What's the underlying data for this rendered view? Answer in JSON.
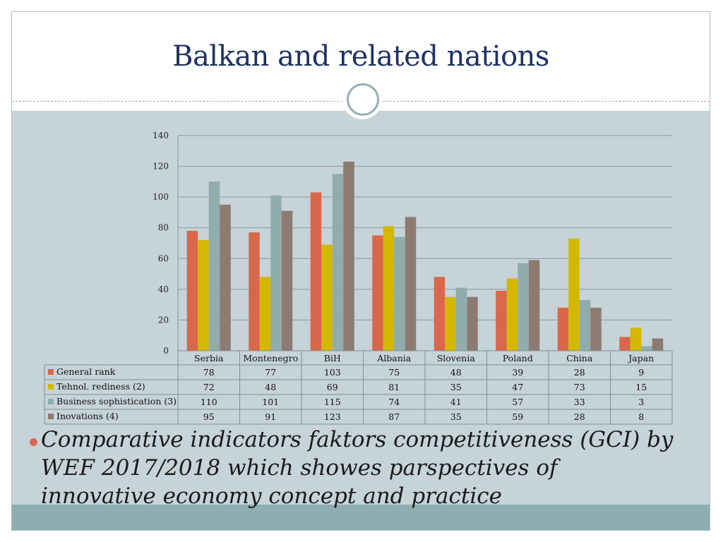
{
  "slide": {
    "title": "Balkan and related nations",
    "bullet": "Comparative indicators faktors competitiveness (GCI) by WEF 2017/2018 which showes parspectives of innovative economy concept and practice"
  },
  "colors": {
    "title": "#1f3263",
    "background_content": "#c6d3d9",
    "band": "#8eadb0",
    "bullet": "#d9674b"
  },
  "chart_data": {
    "type": "bar",
    "categories": [
      "Serbia",
      "Montenegro",
      "BiH",
      "Albania",
      "Slovenia",
      "Poland",
      "China",
      "Japan"
    ],
    "series": [
      {
        "name": "General rank",
        "color": "#d9674b",
        "values": [
          78,
          77,
          103,
          75,
          48,
          39,
          28,
          9
        ]
      },
      {
        "name": "Tehnol. rediness (2)",
        "color": "#d4b800",
        "values": [
          72,
          48,
          69,
          81,
          35,
          47,
          73,
          15
        ]
      },
      {
        "name": "Business sophistication (3)",
        "color": "#90acad",
        "values": [
          110,
          101,
          115,
          74,
          41,
          57,
          33,
          3
        ]
      },
      {
        "name": "Inovations (4)",
        "color": "#8d7b71",
        "values": [
          95,
          91,
          123,
          87,
          35,
          59,
          28,
          8
        ]
      }
    ],
    "ylim": [
      0,
      140
    ],
    "yticks": [
      "0",
      "20",
      "40",
      "60",
      "80",
      "100",
      "120",
      "140"
    ],
    "grid": true,
    "legend": "data table below chart"
  }
}
